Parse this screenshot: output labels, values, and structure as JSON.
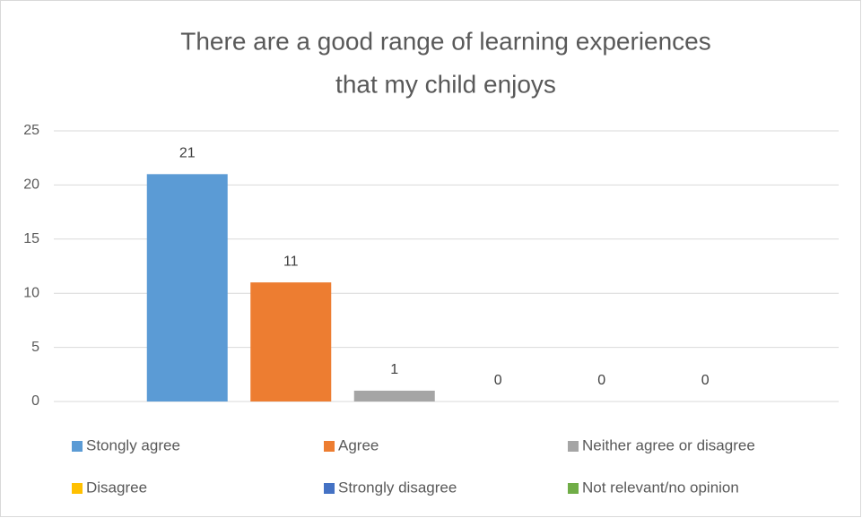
{
  "chart_data": {
    "type": "bar",
    "title": [
      "There are a good range of learning experiences",
      "that my child enjoys"
    ],
    "categories": [
      null
    ],
    "series": [
      {
        "name": "Stongly agree",
        "color": "#5b9bd5",
        "values": [
          21
        ]
      },
      {
        "name": "Agree",
        "color": "#ed7d31",
        "values": [
          11
        ]
      },
      {
        "name": "Neither agree or disagree",
        "color": "#a5a5a5",
        "values": [
          1
        ]
      },
      {
        "name": "Disagree",
        "color": "#ffc000",
        "values": [
          0
        ]
      },
      {
        "name": "Strongly disagree",
        "color": "#4472c4",
        "values": [
          0
        ]
      },
      {
        "name": "Not relevant/no opinion",
        "color": "#70ad47",
        "values": [
          0
        ]
      }
    ],
    "ylim": [
      0,
      25
    ],
    "yticks": [
      0,
      5,
      10,
      15,
      20,
      25
    ],
    "grid": true,
    "legend": "bottom"
  }
}
